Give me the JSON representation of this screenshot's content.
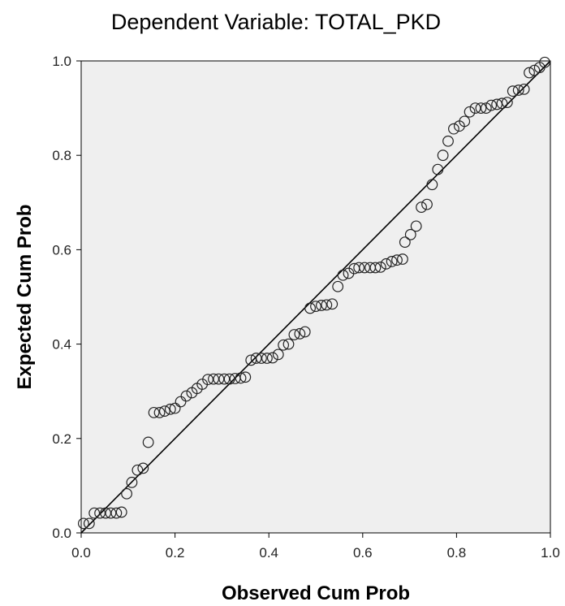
{
  "chart_data": {
    "type": "scatter",
    "title": "Dependent Variable: TOTAL_PKD",
    "xlabel": "Observed Cum Prob",
    "ylabel": "Expected Cum Prob",
    "xlim": [
      0.0,
      1.0
    ],
    "ylim": [
      0.0,
      1.0
    ],
    "x_ticks": [
      "0.0",
      "0.2",
      "0.4",
      "0.6",
      "0.8",
      "1.0"
    ],
    "y_ticks": [
      "0.0",
      "0.2",
      "0.4",
      "0.6",
      "0.8",
      "1.0"
    ],
    "reference_line": {
      "x": [
        0,
        1
      ],
      "y": [
        0,
        1
      ]
    },
    "plot_background": "#efefef",
    "marker": "open-circle",
    "grid": false,
    "points": [
      [
        0.005,
        0.02
      ],
      [
        0.017,
        0.02
      ],
      [
        0.028,
        0.042
      ],
      [
        0.04,
        0.042
      ],
      [
        0.052,
        0.042
      ],
      [
        0.063,
        0.042
      ],
      [
        0.075,
        0.042
      ],
      [
        0.086,
        0.044
      ],
      [
        0.097,
        0.083
      ],
      [
        0.108,
        0.107
      ],
      [
        0.12,
        0.133
      ],
      [
        0.132,
        0.137
      ],
      [
        0.143,
        0.192
      ],
      [
        0.155,
        0.255
      ],
      [
        0.167,
        0.255
      ],
      [
        0.178,
        0.258
      ],
      [
        0.19,
        0.262
      ],
      [
        0.2,
        0.264
      ],
      [
        0.212,
        0.278
      ],
      [
        0.224,
        0.29
      ],
      [
        0.236,
        0.297
      ],
      [
        0.247,
        0.306
      ],
      [
        0.258,
        0.315
      ],
      [
        0.27,
        0.325
      ],
      [
        0.282,
        0.326
      ],
      [
        0.293,
        0.326
      ],
      [
        0.305,
        0.326
      ],
      [
        0.316,
        0.326
      ],
      [
        0.328,
        0.327
      ],
      [
        0.34,
        0.328
      ],
      [
        0.35,
        0.33
      ],
      [
        0.362,
        0.366
      ],
      [
        0.373,
        0.37
      ],
      [
        0.384,
        0.37
      ],
      [
        0.396,
        0.37
      ],
      [
        0.408,
        0.371
      ],
      [
        0.42,
        0.378
      ],
      [
        0.431,
        0.398
      ],
      [
        0.442,
        0.4
      ],
      [
        0.454,
        0.42
      ],
      [
        0.466,
        0.422
      ],
      [
        0.477,
        0.426
      ],
      [
        0.488,
        0.476
      ],
      [
        0.5,
        0.48
      ],
      [
        0.512,
        0.482
      ],
      [
        0.523,
        0.483
      ],
      [
        0.535,
        0.485
      ],
      [
        0.547,
        0.522
      ],
      [
        0.558,
        0.546
      ],
      [
        0.57,
        0.55
      ],
      [
        0.582,
        0.56
      ],
      [
        0.592,
        0.562
      ],
      [
        0.604,
        0.562
      ],
      [
        0.616,
        0.562
      ],
      [
        0.627,
        0.562
      ],
      [
        0.638,
        0.563
      ],
      [
        0.65,
        0.57
      ],
      [
        0.662,
        0.575
      ],
      [
        0.673,
        0.578
      ],
      [
        0.685,
        0.58
      ],
      [
        0.69,
        0.616
      ],
      [
        0.702,
        0.632
      ],
      [
        0.714,
        0.65
      ],
      [
        0.725,
        0.69
      ],
      [
        0.737,
        0.696
      ],
      [
        0.748,
        0.738
      ],
      [
        0.76,
        0.77
      ],
      [
        0.771,
        0.8
      ],
      [
        0.782,
        0.83
      ],
      [
        0.794,
        0.856
      ],
      [
        0.806,
        0.862
      ],
      [
        0.817,
        0.872
      ],
      [
        0.828,
        0.892
      ],
      [
        0.84,
        0.9
      ],
      [
        0.852,
        0.9
      ],
      [
        0.863,
        0.9
      ],
      [
        0.874,
        0.906
      ],
      [
        0.886,
        0.908
      ],
      [
        0.897,
        0.91
      ],
      [
        0.908,
        0.912
      ],
      [
        0.92,
        0.936
      ],
      [
        0.932,
        0.938
      ],
      [
        0.944,
        0.94
      ],
      [
        0.955,
        0.975
      ],
      [
        0.966,
        0.98
      ],
      [
        0.977,
        0.986
      ],
      [
        0.988,
        0.997
      ]
    ]
  }
}
